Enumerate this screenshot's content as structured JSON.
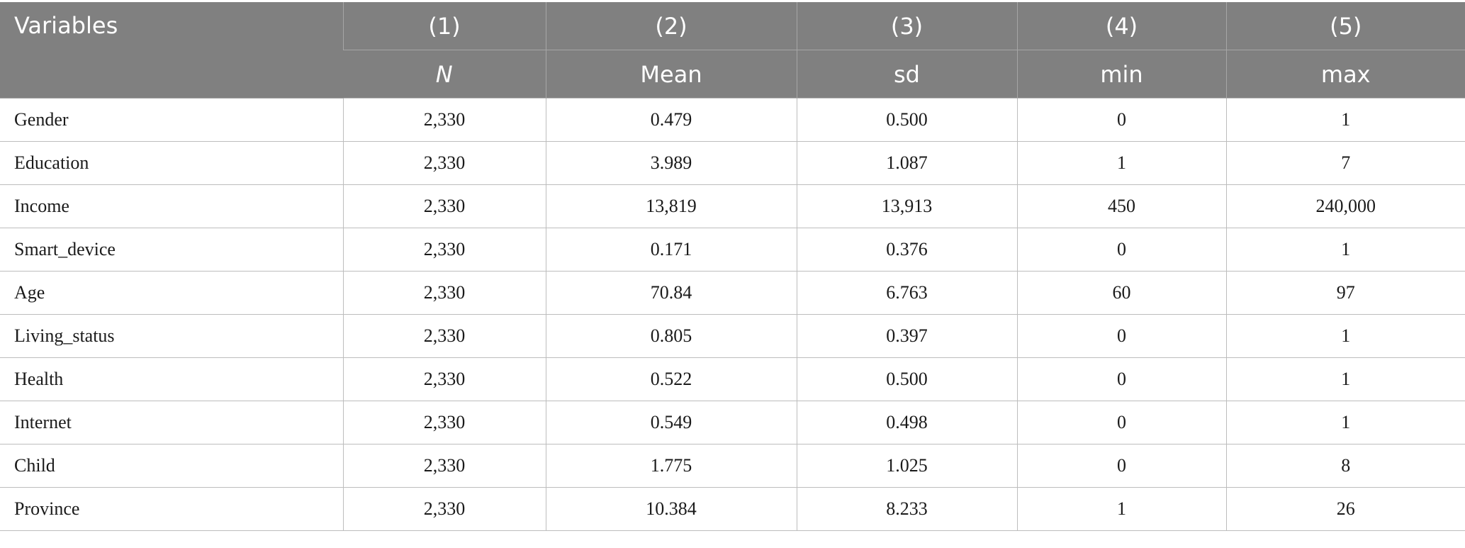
{
  "header": {
    "variables_label": "Variables",
    "columns": [
      {
        "number": "(1)",
        "stat": "N"
      },
      {
        "number": "(2)",
        "stat": "Mean"
      },
      {
        "number": "(3)",
        "stat": "sd"
      },
      {
        "number": "(4)",
        "stat": "min"
      },
      {
        "number": "(5)",
        "stat": "max"
      }
    ]
  },
  "rows": [
    {
      "variable": "Gender",
      "values": [
        "2,330",
        "0.479",
        "0.500",
        "0",
        "1"
      ]
    },
    {
      "variable": "Education",
      "values": [
        "2,330",
        "3.989",
        "1.087",
        "1",
        "7"
      ]
    },
    {
      "variable": "Income",
      "values": [
        "2,330",
        "13,819",
        "13,913",
        "450",
        "240,000"
      ]
    },
    {
      "variable": "Smart_device",
      "values": [
        "2,330",
        "0.171",
        "0.376",
        "0",
        "1"
      ]
    },
    {
      "variable": "Age",
      "values": [
        "2,330",
        "70.84",
        "6.763",
        "60",
        "97"
      ]
    },
    {
      "variable": "Living_status",
      "values": [
        "2,330",
        "0.805",
        "0.397",
        "0",
        "1"
      ]
    },
    {
      "variable": "Health",
      "values": [
        "2,330",
        "0.522",
        "0.500",
        "0",
        "1"
      ]
    },
    {
      "variable": "Internet",
      "values": [
        "2,330",
        "0.549",
        "0.498",
        "0",
        "1"
      ]
    },
    {
      "variable": "Child",
      "values": [
        "2,330",
        "1.775",
        "1.025",
        "0",
        "8"
      ]
    },
    {
      "variable": "Province",
      "values": [
        "2,330",
        "10.384",
        "8.233",
        "1",
        "26"
      ]
    }
  ],
  "colors": {
    "header_bg": "#808080",
    "header_text": "#ffffff",
    "rule": "#bdbdbd"
  }
}
